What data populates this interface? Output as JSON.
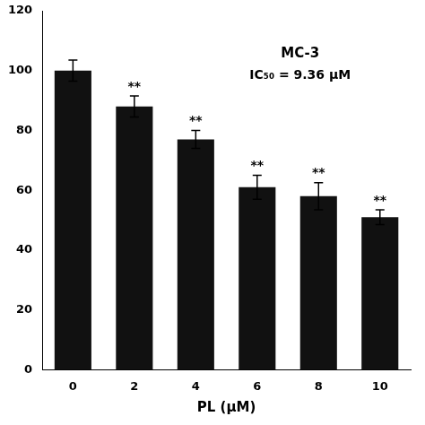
{
  "chart_data": {
    "type": "bar",
    "categories": [
      0,
      2,
      4,
      6,
      8,
      10
    ],
    "values": [
      100,
      88,
      77,
      61,
      58,
      51
    ],
    "errors": [
      3.5,
      3.5,
      3.0,
      4.0,
      4.5,
      2.5
    ],
    "significance": [
      null,
      "**",
      "**",
      "**",
      "**",
      "**"
    ],
    "color": "#111111",
    "xlabel": "PL (μM)",
    "ylim": [
      0,
      120
    ],
    "yticks": [
      0,
      20,
      40,
      60,
      80,
      100,
      120
    ],
    "annotations": [
      "MC-3",
      "IC₅₀ = 9.36 μM"
    ],
    "grid": false
  }
}
